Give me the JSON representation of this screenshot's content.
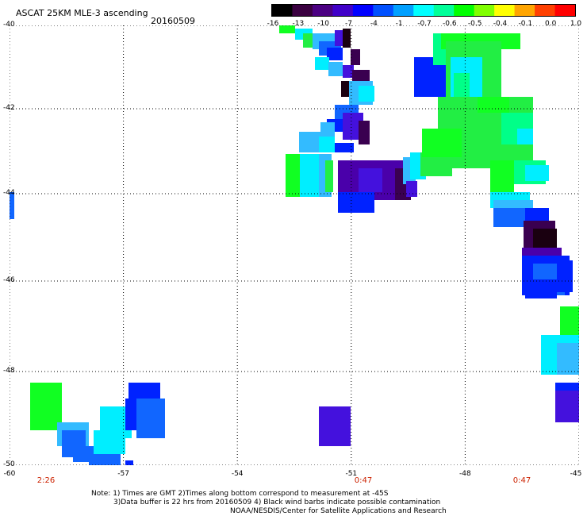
{
  "header": {
    "title": "ASCAT 25KM MLE-3 ascending",
    "date": "20160509"
  },
  "colorbar": {
    "ticks": [
      "-16",
      "-13",
      "-10",
      "-7",
      "-4",
      "-1",
      "-0.7",
      "-0.6",
      "-0.5",
      "-0.4",
      "-0.1",
      "0.0",
      "1.0"
    ],
    "colors": [
      "#000000",
      "#3a0040",
      "#4b0082",
      "#4000c8",
      "#0000ff",
      "#0050ff",
      "#00a0ff",
      "#00ffff",
      "#00ff99",
      "#00ff00",
      "#80ff00",
      "#ffff00",
      "#ffa500",
      "#ff4000",
      "#ff0000"
    ]
  },
  "map": {
    "lat_labels": [
      "-40",
      "-42",
      "-44",
      "-46",
      "-48",
      "-50"
    ],
    "lon_labels": [
      "-60",
      "-57",
      "-54",
      "-51",
      "-48",
      "-45"
    ],
    "time_labels": [
      "2:26",
      "0:47",
      "0:47"
    ]
  },
  "notes": {
    "line1": "Note: 1) Times are GMT 2)Times along bottom correspond to measurement at -45S",
    "line2": "3)Data buffer is 22 hrs from 20160509 4) Black wind barbs indicate possible contamination",
    "credit": "NOAA/NESDIS/Center for Satellite Applications and Research"
  },
  "palette": {
    "green": "#22ee44",
    "bright_green": "#11ff22",
    "cyan": "#00eeff",
    "sky": "#33bbff",
    "mid_blue": "#1166ff",
    "blue": "#0022ff",
    "violet": "#4411dd",
    "purple": "#4a00aa",
    "dark_purple": "#3a0050",
    "black_purple": "#1a0010",
    "spring_green": "#00ff88"
  }
}
